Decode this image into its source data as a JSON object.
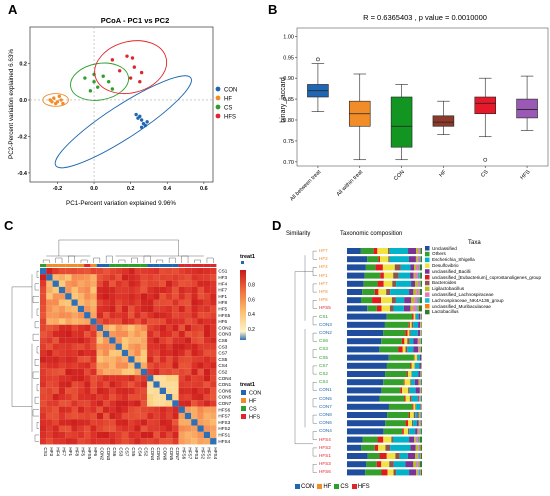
{
  "panel_labels": [
    "A",
    "B",
    "C",
    "D"
  ],
  "colors": {
    "CON": "#1f66b3",
    "HF": "#f28c28",
    "CS": "#2ca02c",
    "HFS": "#e0252b",
    "box_between": "#1f66b3",
    "box_within": "#f28c28",
    "box_CON": "#139621",
    "box_HF": "#8b3a2b",
    "box_CS": "#e41a2a",
    "box_HFS": "#9b59b6"
  },
  "chart_data": [
    {
      "type": "scatter",
      "title": "PCoA - PC1 vs PC2",
      "xlabel": "PC1-Percent variation explained 9.96%",
      "ylabel": "PC2-Percent variation explained 6.63%",
      "xlim": [
        -0.35,
        0.65
      ],
      "ylim": [
        -0.45,
        0.4
      ],
      "xticks": [
        -0.2,
        0.0,
        0.2,
        0.4,
        0.6
      ],
      "xtick_labels": [
        "-0.2",
        "0.0",
        "0.2",
        "0.4",
        "0.6"
      ],
      "yticks": [
        -0.4,
        -0.2,
        0.0,
        0.2
      ],
      "ytick_labels": [
        "-0.4",
        "-0.2",
        "0.0",
        "0.2"
      ],
      "legend_position": "right",
      "series": [
        {
          "name": "CON",
          "points": [
            [
              0.23,
              -0.08
            ],
            [
              0.25,
              -0.09
            ],
            [
              0.26,
              -0.11
            ],
            [
              0.27,
              -0.13
            ],
            [
              0.28,
              -0.14
            ],
            [
              0.24,
              -0.1
            ],
            [
              0.29,
              -0.12
            ],
            [
              0.26,
              -0.15
            ]
          ]
        },
        {
          "name": "HF",
          "points": [
            [
              -0.24,
              0.0
            ],
            [
              -0.22,
              0.01
            ],
            [
              -0.2,
              -0.01
            ],
            [
              -0.18,
              0.0
            ],
            [
              -0.21,
              -0.02
            ],
            [
              -0.19,
              0.02
            ],
            [
              -0.23,
              -0.01
            ],
            [
              -0.17,
              -0.02
            ]
          ]
        },
        {
          "name": "CS",
          "points": [
            [
              -0.05,
              0.12
            ],
            [
              0.0,
              0.1
            ],
            [
              0.05,
              0.13
            ],
            [
              0.1,
              0.06
            ],
            [
              -0.02,
              0.05
            ],
            [
              0.0,
              0.14
            ],
            [
              0.02,
              0.07
            ],
            [
              0.08,
              0.1
            ]
          ]
        },
        {
          "name": "HFS",
          "points": [
            [
              0.1,
              0.22
            ],
            [
              0.18,
              0.24
            ],
            [
              0.22,
              0.18
            ],
            [
              0.2,
              0.12
            ],
            [
              0.25,
              0.1
            ],
            [
              0.14,
              0.16
            ],
            [
              0.26,
              0.15
            ],
            [
              0.21,
              0.23
            ]
          ]
        }
      ]
    },
    {
      "type": "box",
      "title": "R = 0.6365403 , p value = 0.0010000",
      "ylabel": "binary_jaccard",
      "ylim": [
        0.69,
        1.02
      ],
      "yticks": [
        0.7,
        0.75,
        0.8,
        0.85,
        0.9,
        0.95,
        1.0
      ],
      "ytick_labels": [
        "0.70",
        "0.75",
        "0.80",
        "0.85",
        "0.90",
        "0.95",
        "1.00"
      ],
      "categories": [
        "All between treat",
        "All within treat",
        "CON",
        "HF",
        "CS",
        "HFS"
      ],
      "boxes": [
        {
          "min": 0.82,
          "q1": 0.855,
          "median": 0.87,
          "q3": 0.885,
          "max": 0.935,
          "outliers": [
            0.945
          ]
        },
        {
          "min": 0.705,
          "q1": 0.785,
          "median": 0.815,
          "q3": 0.845,
          "max": 0.91,
          "outliers": []
        },
        {
          "min": 0.705,
          "q1": 0.735,
          "median": 0.785,
          "q3": 0.855,
          "max": 0.885,
          "outliers": []
        },
        {
          "min": 0.765,
          "q1": 0.785,
          "median": 0.795,
          "q3": 0.81,
          "max": 0.845,
          "outliers": []
        },
        {
          "min": 0.76,
          "q1": 0.815,
          "median": 0.84,
          "q3": 0.855,
          "max": 0.9,
          "outliers": [
            0.705
          ]
        },
        {
          "min": 0.775,
          "q1": 0.805,
          "median": 0.825,
          "q3": 0.85,
          "max": 0.905,
          "outliers": []
        }
      ]
    },
    {
      "type": "heatmap",
      "row_labels": [
        "CS1",
        "HF3",
        "HF4",
        "HF7",
        "HF1",
        "HF8",
        "HF5",
        "HFS5",
        "HF6",
        "CON2",
        "CON3",
        "CS6",
        "CS3",
        "CS7",
        "CS5",
        "CS4",
        "CS2",
        "CON4",
        "CON1",
        "CON6",
        "CON5",
        "CON7",
        "HFS6",
        "HFS7",
        "HFS3",
        "HFS2",
        "HFS1",
        "HFS4"
      ],
      "scale_ticks": [
        0.8,
        0.6,
        0.4,
        0.2
      ],
      "scale_tick_labels": [
        "0.8",
        "0.6",
        "0.4",
        "0.2"
      ],
      "legend_title": "treat1",
      "legend": [
        "CON",
        "HF",
        "CS",
        "HFS"
      ]
    }
  ],
  "panel_c": {
    "top_legend_title": "treat1"
  },
  "panel_d": {
    "similarity_header": "Similarity",
    "composition_header": "Taxonomic composition",
    "taxa_header": "Taxa",
    "samples": [
      {
        "label": "HF7",
        "group": "HF"
      },
      {
        "label": "HF2",
        "group": "HF"
      },
      {
        "label": "HF4",
        "group": "HF"
      },
      {
        "label": "HF1",
        "group": "HF"
      },
      {
        "label": "HF7",
        "group": "HF"
      },
      {
        "label": "HF8",
        "group": "HF"
      },
      {
        "label": "HF6",
        "group": "HF"
      },
      {
        "label": "HFS5",
        "group": "HFS"
      },
      {
        "label": "CS1",
        "group": "CS"
      },
      {
        "label": "CON3",
        "group": "CON"
      },
      {
        "label": "CON2",
        "group": "CON"
      },
      {
        "label": "CS6",
        "group": "CS"
      },
      {
        "label": "CS3",
        "group": "CS"
      },
      {
        "label": "CS5",
        "group": "CS"
      },
      {
        "label": "CS7",
        "group": "CS"
      },
      {
        "label": "CS2",
        "group": "CS"
      },
      {
        "label": "CS4",
        "group": "CS"
      },
      {
        "label": "CON1",
        "group": "CON"
      },
      {
        "label": "CON5",
        "group": "CON"
      },
      {
        "label": "CON7",
        "group": "CON"
      },
      {
        "label": "CON8",
        "group": "CON"
      },
      {
        "label": "CON6",
        "group": "CON"
      },
      {
        "label": "CON4",
        "group": "CON"
      },
      {
        "label": "HFS4",
        "group": "HFS"
      },
      {
        "label": "HFS2",
        "group": "HFS"
      },
      {
        "label": "HFS1",
        "group": "HFS"
      },
      {
        "label": "HFS3",
        "group": "HFS"
      },
      {
        "label": "HFS6",
        "group": "HFS"
      }
    ],
    "taxa": [
      {
        "name": "Unclassified",
        "color": "#1f4e9e"
      },
      {
        "name": "Others",
        "color": "#33a02c"
      },
      {
        "name": "Escherichia_Shigella",
        "color": "#00b3c8"
      },
      {
        "name": "Desulfovibrio",
        "color": "#f0e442"
      },
      {
        "name": "unclassified_Bacilli",
        "color": "#7b3294"
      },
      {
        "name": "unclassified_[Eubacterium]_coprostanoligenes_group",
        "color": "#e31a1c"
      },
      {
        "name": "Bacteroides",
        "color": "#8c564b"
      },
      {
        "name": "Ligilactobacillus",
        "color": "#bcbd22"
      },
      {
        "name": "unclassified_Lachnospiraceae",
        "color": "#e377c2"
      },
      {
        "name": "Lachnospiraceae_NK4A136_group",
        "color": "#17becf"
      },
      {
        "name": "unclassified_Muribaculaceae",
        "color": "#ff7f0e"
      },
      {
        "name": "Lactobacillus",
        "color": "#2e7d32"
      }
    ],
    "group_legend": [
      "CON",
      "HF",
      "CS",
      "HFS"
    ]
  }
}
